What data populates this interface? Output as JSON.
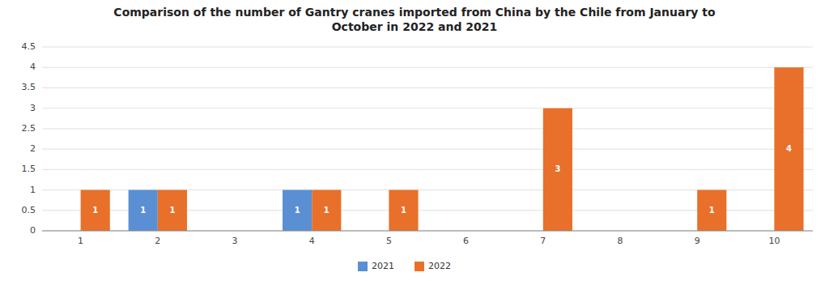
{
  "chart_data": {
    "type": "bar",
    "title": "Comparison of the number of Gantry cranes imported from China by the Chile from January to\nOctober in 2022 and 2021",
    "categories": [
      1,
      2,
      3,
      4,
      5,
      6,
      7,
      8,
      9,
      10
    ],
    "series": [
      {
        "name": "2021",
        "color": "#5B8FD4",
        "values": [
          0,
          1,
          0,
          1,
          0,
          0,
          0,
          0,
          0,
          0
        ]
      },
      {
        "name": "2022",
        "color": "#E8702A",
        "values": [
          1,
          1,
          0,
          1,
          1,
          0,
          3,
          0,
          1,
          4
        ]
      }
    ],
    "ylim": [
      0,
      4.5
    ],
    "yticks": [
      0,
      0.5,
      1,
      1.5,
      2,
      2.5,
      3,
      3.5,
      4,
      4.5
    ],
    "grid": true,
    "legend": "bottom",
    "data_labels": true
  }
}
